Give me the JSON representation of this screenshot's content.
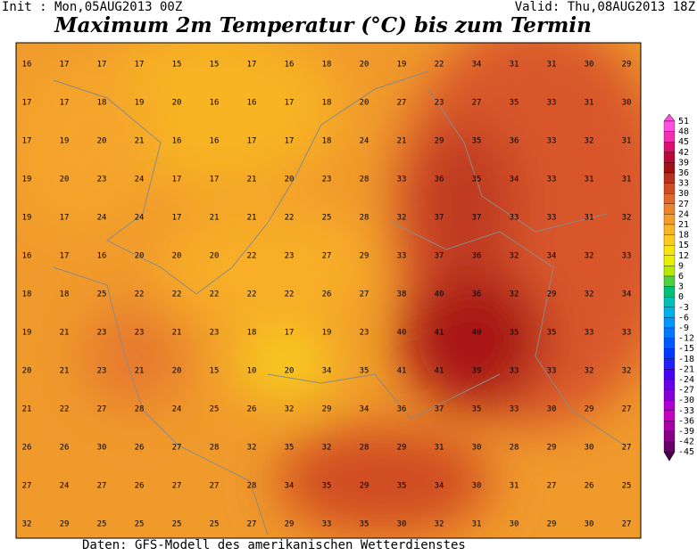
{
  "header": {
    "init": "Init : Mon,05AUG2013 00Z",
    "valid": "Valid: Thu,08AUG2013 18Z",
    "title": "Maximum 2m Temperatur (°C) bis zum Termin"
  },
  "map": {
    "values": [
      [
        16,
        17,
        17,
        17,
        15,
        15,
        17,
        16,
        18,
        20,
        19,
        22,
        34,
        31,
        31,
        30,
        29
      ],
      [
        17,
        17,
        18,
        19,
        20,
        16,
        16,
        17,
        18,
        20,
        27,
        23,
        27,
        35,
        33,
        31,
        30
      ],
      [
        17,
        19,
        20,
        21,
        16,
        16,
        17,
        17,
        18,
        24,
        21,
        29,
        35,
        36,
        33,
        32,
        31
      ],
      [
        19,
        20,
        23,
        24,
        17,
        17,
        21,
        20,
        23,
        28,
        33,
        36,
        35,
        34,
        33,
        31,
        31
      ],
      [
        19,
        17,
        24,
        24,
        17,
        21,
        21,
        22,
        25,
        28,
        32,
        37,
        37,
        33,
        33,
        31,
        32
      ],
      [
        16,
        17,
        16,
        20,
        20,
        20,
        22,
        23,
        27,
        29,
        33,
        37,
        36,
        32,
        34,
        32,
        33
      ],
      [
        18,
        18,
        25,
        22,
        22,
        22,
        22,
        22,
        26,
        27,
        38,
        40,
        36,
        32,
        29,
        32,
        34
      ],
      [
        19,
        21,
        23,
        23,
        21,
        23,
        18,
        17,
        19,
        23,
        40,
        41,
        40,
        35,
        35,
        33,
        33
      ],
      [
        20,
        21,
        23,
        21,
        20,
        15,
        10,
        20,
        34,
        35,
        41,
        41,
        39,
        33,
        33,
        32,
        32
      ],
      [
        21,
        22,
        27,
        28,
        24,
        25,
        26,
        32,
        29,
        34,
        36,
        37,
        35,
        33,
        30,
        29,
        27
      ],
      [
        26,
        26,
        30,
        26,
        27,
        28,
        32,
        35,
        32,
        28,
        29,
        31,
        30,
        28,
        29,
        30,
        27
      ],
      [
        27,
        24,
        27,
        26,
        27,
        27,
        28,
        34,
        35,
        29,
        35,
        34,
        30,
        31,
        27,
        26,
        25
      ],
      [
        32,
        29,
        25,
        25,
        25,
        25,
        27,
        29,
        33,
        35,
        30,
        32,
        31,
        30,
        29,
        30,
        27
      ]
    ]
  },
  "colorbar": {
    "levels": [
      {
        "value": 51,
        "color": "#ff50e0"
      },
      {
        "value": 48,
        "color": "#f030b0"
      },
      {
        "value": 45,
        "color": "#d8106e"
      },
      {
        "value": 42,
        "color": "#b80838"
      },
      {
        "value": 39,
        "color": "#a01018"
      },
      {
        "value": 36,
        "color": "#b83020"
      },
      {
        "value": 33,
        "color": "#d04c24"
      },
      {
        "value": 30,
        "color": "#e06a2c"
      },
      {
        "value": 27,
        "color": "#ec8430"
      },
      {
        "value": 24,
        "color": "#f49c2c"
      },
      {
        "value": 21,
        "color": "#f8b424"
      },
      {
        "value": 18,
        "color": "#f8cc1c"
      },
      {
        "value": 15,
        "color": "#f8e410"
      },
      {
        "value": 12,
        "color": "#e8f000"
      },
      {
        "value": 9,
        "color": "#b8e800"
      },
      {
        "value": 6,
        "color": "#50d040"
      },
      {
        "value": 3,
        "color": "#00c078"
      },
      {
        "value": 0,
        "color": "#00c0b8"
      },
      {
        "value": -3,
        "color": "#00b0e8"
      },
      {
        "value": -6,
        "color": "#0098ff"
      },
      {
        "value": -9,
        "color": "#0078ff"
      },
      {
        "value": -12,
        "color": "#0058ff"
      },
      {
        "value": -15,
        "color": "#0038ff"
      },
      {
        "value": -18,
        "color": "#2020ff"
      },
      {
        "value": -21,
        "color": "#4800f8"
      },
      {
        "value": -24,
        "color": "#6800e8"
      },
      {
        "value": -27,
        "color": "#8800d8"
      },
      {
        "value": -30,
        "color": "#b000d0"
      },
      {
        "value": -33,
        "color": "#c800c0"
      },
      {
        "value": -36,
        "color": "#a800a8"
      },
      {
        "value": -39,
        "color": "#880088"
      },
      {
        "value": -42,
        "color": "#680068"
      },
      {
        "value": -45,
        "color": "#480048"
      }
    ]
  },
  "footer": "Daten: GFS-Modell des amerikanischen Wetterdienstes"
}
